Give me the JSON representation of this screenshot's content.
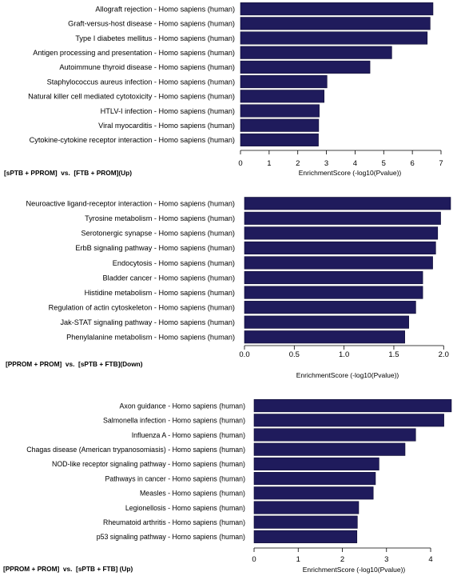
{
  "colors": {
    "bar": "#1f1b5c",
    "bar_edge": "#0b0930",
    "axis": "#000000"
  },
  "chart_data": [
    {
      "type": "bar",
      "orientation": "horizontal",
      "categories": [
        "Allograft rejection - Homo sapiens (human)",
        "Graft-versus-host disease - Homo sapiens (human)",
        "Type I diabetes mellitus - Homo sapiens (human)",
        "Antigen processing and presentation - Homo sapiens (human)",
        "Autoimmune thyroid disease - Homo sapiens (human)",
        "Staphylococcus aureus infection - Homo sapiens (human)",
        "Natural killer cell mediated cytotoxicity - Homo sapiens (human)",
        "HTLV-I infection - Homo sapiens (human)",
        "Viral myocarditis - Homo sapiens (human)",
        "Cytokine-cytokine receptor interaction - Homo sapiens (human)"
      ],
      "values": [
        6.72,
        6.62,
        6.52,
        5.28,
        4.52,
        3.02,
        2.92,
        2.75,
        2.73,
        2.72
      ],
      "xlim": [
        0,
        7
      ],
      "xticks": [
        0,
        1,
        2,
        3,
        4,
        5,
        6,
        7
      ],
      "xticklabels": [
        "0",
        "1",
        "2",
        "3",
        "4",
        "5",
        "6",
        "7"
      ],
      "xlabel": "EnrichmentScore (-log10(Pvalue))",
      "comparison_label": "[sPTB + PPROM]  vs.  [FTB + PROM](Up)"
    },
    {
      "type": "bar",
      "orientation": "horizontal",
      "categories": [
        "Neuroactive ligand-receptor interaction - Homo sapiens (human)",
        "Tyrosine metabolism - Homo sapiens (human)",
        "Serotonergic synapse - Homo sapiens (human)",
        "ErbB signaling pathway - Homo sapiens (human)",
        "Endocytosis - Homo sapiens (human)",
        "Bladder cancer - Homo sapiens (human)",
        "Histidine metabolism - Homo sapiens (human)",
        "Regulation of actin cytoskeleton - Homo sapiens (human)",
        "Jak-STAT signaling pathway - Homo sapiens (human)",
        "Phenylalanine metabolism - Homo sapiens (human)"
      ],
      "values": [
        2.07,
        1.97,
        1.94,
        1.92,
        1.89,
        1.79,
        1.79,
        1.72,
        1.65,
        1.61
      ],
      "xlim": [
        0,
        2.07
      ],
      "xticks": [
        0,
        0.5,
        1,
        1.5,
        2
      ],
      "xticklabels": [
        "0.0",
        "0.5",
        "1.0",
        "1.5",
        "2.0"
      ],
      "xlabel": "EnrichmentScore (-log10(Pvalue))",
      "comparison_label": "[PPROM + PROM]  vs.  [sPTB + FTB](Down)"
    },
    {
      "type": "bar",
      "orientation": "horizontal",
      "categories": [
        "Axon guidance - Homo sapiens (human)",
        "Salmonella infection - Homo sapiens (human)",
        "Influenza A - Homo sapiens (human)",
        "Chagas disease (American trypanosomiasis) - Homo sapiens (human)",
        "NOD-like receptor signaling pathway - Homo sapiens (human)",
        "Pathways in cancer - Homo sapiens (human)",
        "Measles - Homo sapiens (human)",
        "Legionellosis - Homo sapiens (human)",
        "Rheumatoid arthritis - Homo sapiens (human)",
        "p53 signaling pathway - Homo sapiens (human)"
      ],
      "values": [
        4.47,
        4.3,
        3.66,
        3.42,
        2.83,
        2.75,
        2.7,
        2.37,
        2.34,
        2.33
      ],
      "xlim": [
        0,
        4.47
      ],
      "xticks": [
        0,
        1,
        2,
        3,
        4
      ],
      "xticklabels": [
        "0",
        "1",
        "2",
        "3",
        "4"
      ],
      "xlabel": "EnrichmentScore (-log10(Pvalue))",
      "comparison_label": "[PPROM + PROM]  vs.  [sPTB + FTB] (Up)"
    }
  ]
}
